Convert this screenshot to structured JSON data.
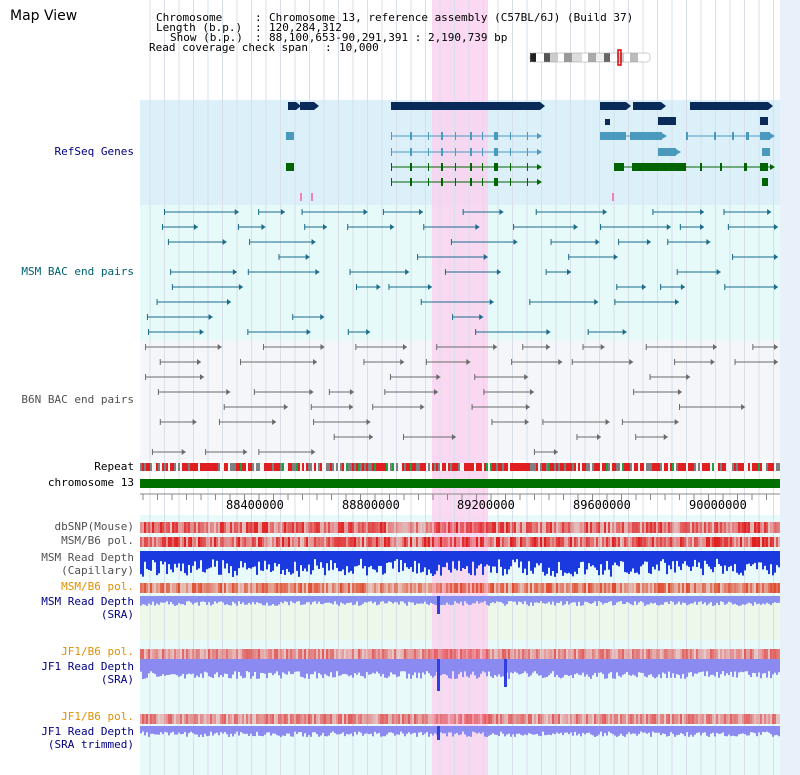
{
  "title": "Map View",
  "info": {
    "chromosome_label": "Chromosome",
    "chromosome_value": "Chromosome 13, reference assembly (C57BL/6J) (Build 37)",
    "length_label": "Length (b.p.)",
    "length_value": "120,284,312",
    "show_label": "Show (b.p.)",
    "show_value": "88,100,653-90,291,391 : 2,190,739 bp",
    "coverage_label": "Read coverage check span",
    "coverage_value": "10,000"
  },
  "tracks": {
    "refseq": "RefSeq Genes",
    "msm_bac": "MSM BAC end pairs",
    "b6n_bac": "B6N BAC end pairs",
    "repeat": "Repeat",
    "chromosome": "chromosome 13",
    "dbsnp": "dbSNP(Mouse)",
    "msm_b6_pol_1": "MSM/B6 pol.",
    "msm_read_depth_cap_1": "MSM Read Depth",
    "msm_read_depth_cap_2": "(Capillary)",
    "msm_b6_pol_2": "MSM/B6 pol.",
    "msm_read_depth_sra_1": "MSM Read Depth",
    "msm_read_depth_sra_2": "(SRA)",
    "jf1_b6_pol_1": "JF1/B6 pol.",
    "jf1_read_depth_sra_1": "JF1 Read Depth",
    "jf1_read_depth_sra_2": "(SRA)",
    "jf1_b6_pol_2": "JF1/B6 pol.",
    "jf1_read_depth_trim_1": "JF1 Read Depth",
    "jf1_read_depth_trim_2": "(SRA trimmed)"
  },
  "axis": {
    "ticks": [
      "88400000",
      "88800000",
      "89200000",
      "89600000",
      "90000000"
    ]
  },
  "colors": {
    "refseq_bg": "#dcf0fa",
    "bac_bg": "#e6fafa",
    "highlight": "#fad2f0",
    "gene_dark": "#0a2a5a",
    "gene_green": "#006400",
    "gene_teal": "#4a9ac0",
    "label_blue": "#000080",
    "label_teal": "#006070",
    "label_orange": "#e09000",
    "chromosome_bar": "#007000"
  }
}
